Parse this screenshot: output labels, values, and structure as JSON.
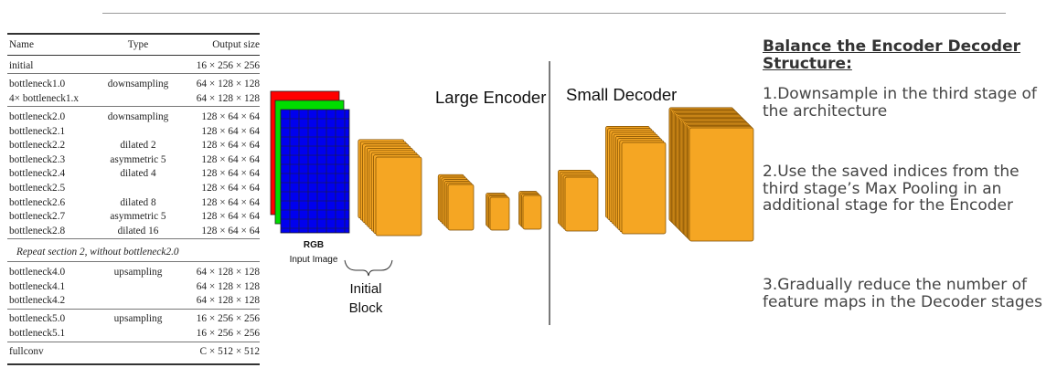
{
  "table": {
    "headers": {
      "name": "Name",
      "type": "Type",
      "size": "Output size"
    },
    "groups": [
      [
        {
          "name": "initial",
          "type": "",
          "size": "16 × 256 × 256"
        }
      ],
      [
        {
          "name": "bottleneck1.0",
          "type": "downsampling",
          "size": "64 × 128 × 128"
        },
        {
          "name": "4× bottleneck1.x",
          "type": "",
          "size": "64 × 128 × 128"
        }
      ],
      [
        {
          "name": "bottleneck2.0",
          "type": "downsampling",
          "size": "128 × 64 × 64"
        },
        {
          "name": "bottleneck2.1",
          "type": "",
          "size": "128 × 64 × 64"
        },
        {
          "name": "bottleneck2.2",
          "type": "dilated 2",
          "size": "128 × 64 × 64"
        },
        {
          "name": "bottleneck2.3",
          "type": "asymmetric 5",
          "size": "128 × 64 × 64"
        },
        {
          "name": "bottleneck2.4",
          "type": "dilated 4",
          "size": "128 × 64 × 64"
        },
        {
          "name": "bottleneck2.5",
          "type": "",
          "size": "128 × 64 × 64"
        },
        {
          "name": "bottleneck2.6",
          "type": "dilated 8",
          "size": "128 × 64 × 64"
        },
        {
          "name": "bottleneck2.7",
          "type": "asymmetric 5",
          "size": "128 × 64 × 64"
        },
        {
          "name": "bottleneck2.8",
          "type": "dilated 16",
          "size": "128 × 64 × 64"
        }
      ],
      [
        {
          "note": "Repeat section 2, without bottleneck2.0"
        }
      ],
      [
        {
          "name": "bottleneck4.0",
          "type": "upsampling",
          "size": "64 × 128 × 128"
        },
        {
          "name": "bottleneck4.1",
          "type": "",
          "size": "64 × 128 × 128"
        },
        {
          "name": "bottleneck4.2",
          "type": "",
          "size": "64 × 128 × 128"
        }
      ],
      [
        {
          "name": "bottleneck5.0",
          "type": "upsampling",
          "size": "16 × 256 × 256"
        },
        {
          "name": "bottleneck5.1",
          "type": "",
          "size": "16 × 256 × 256"
        }
      ],
      [
        {
          "name": "fullconv",
          "type": "",
          "size": "C × 512 × 512"
        }
      ]
    ]
  },
  "diagram": {
    "input_label": "RGB",
    "input_sublabel": "Input Image",
    "initial_block_label": "Initial Block",
    "large_encoder_label": "Large Encoder",
    "small_decoder_label": "Small Decoder",
    "block_color": "#F5A623",
    "block_edge_color": "#7a4a00",
    "channel_colors": [
      "#ff0000",
      "#00dd00",
      "#0000ee"
    ]
  },
  "balance": {
    "title": "Balance the Encoder Decoder Structure:",
    "points": [
      "1.Downsample in the third stage of the architecture",
      "2.Use the saved indices  from the third stage’s Max Pooling in an additional stage for the Encoder",
      "3.Gradually reduce the number of feature maps in the Decoder stages"
    ]
  }
}
